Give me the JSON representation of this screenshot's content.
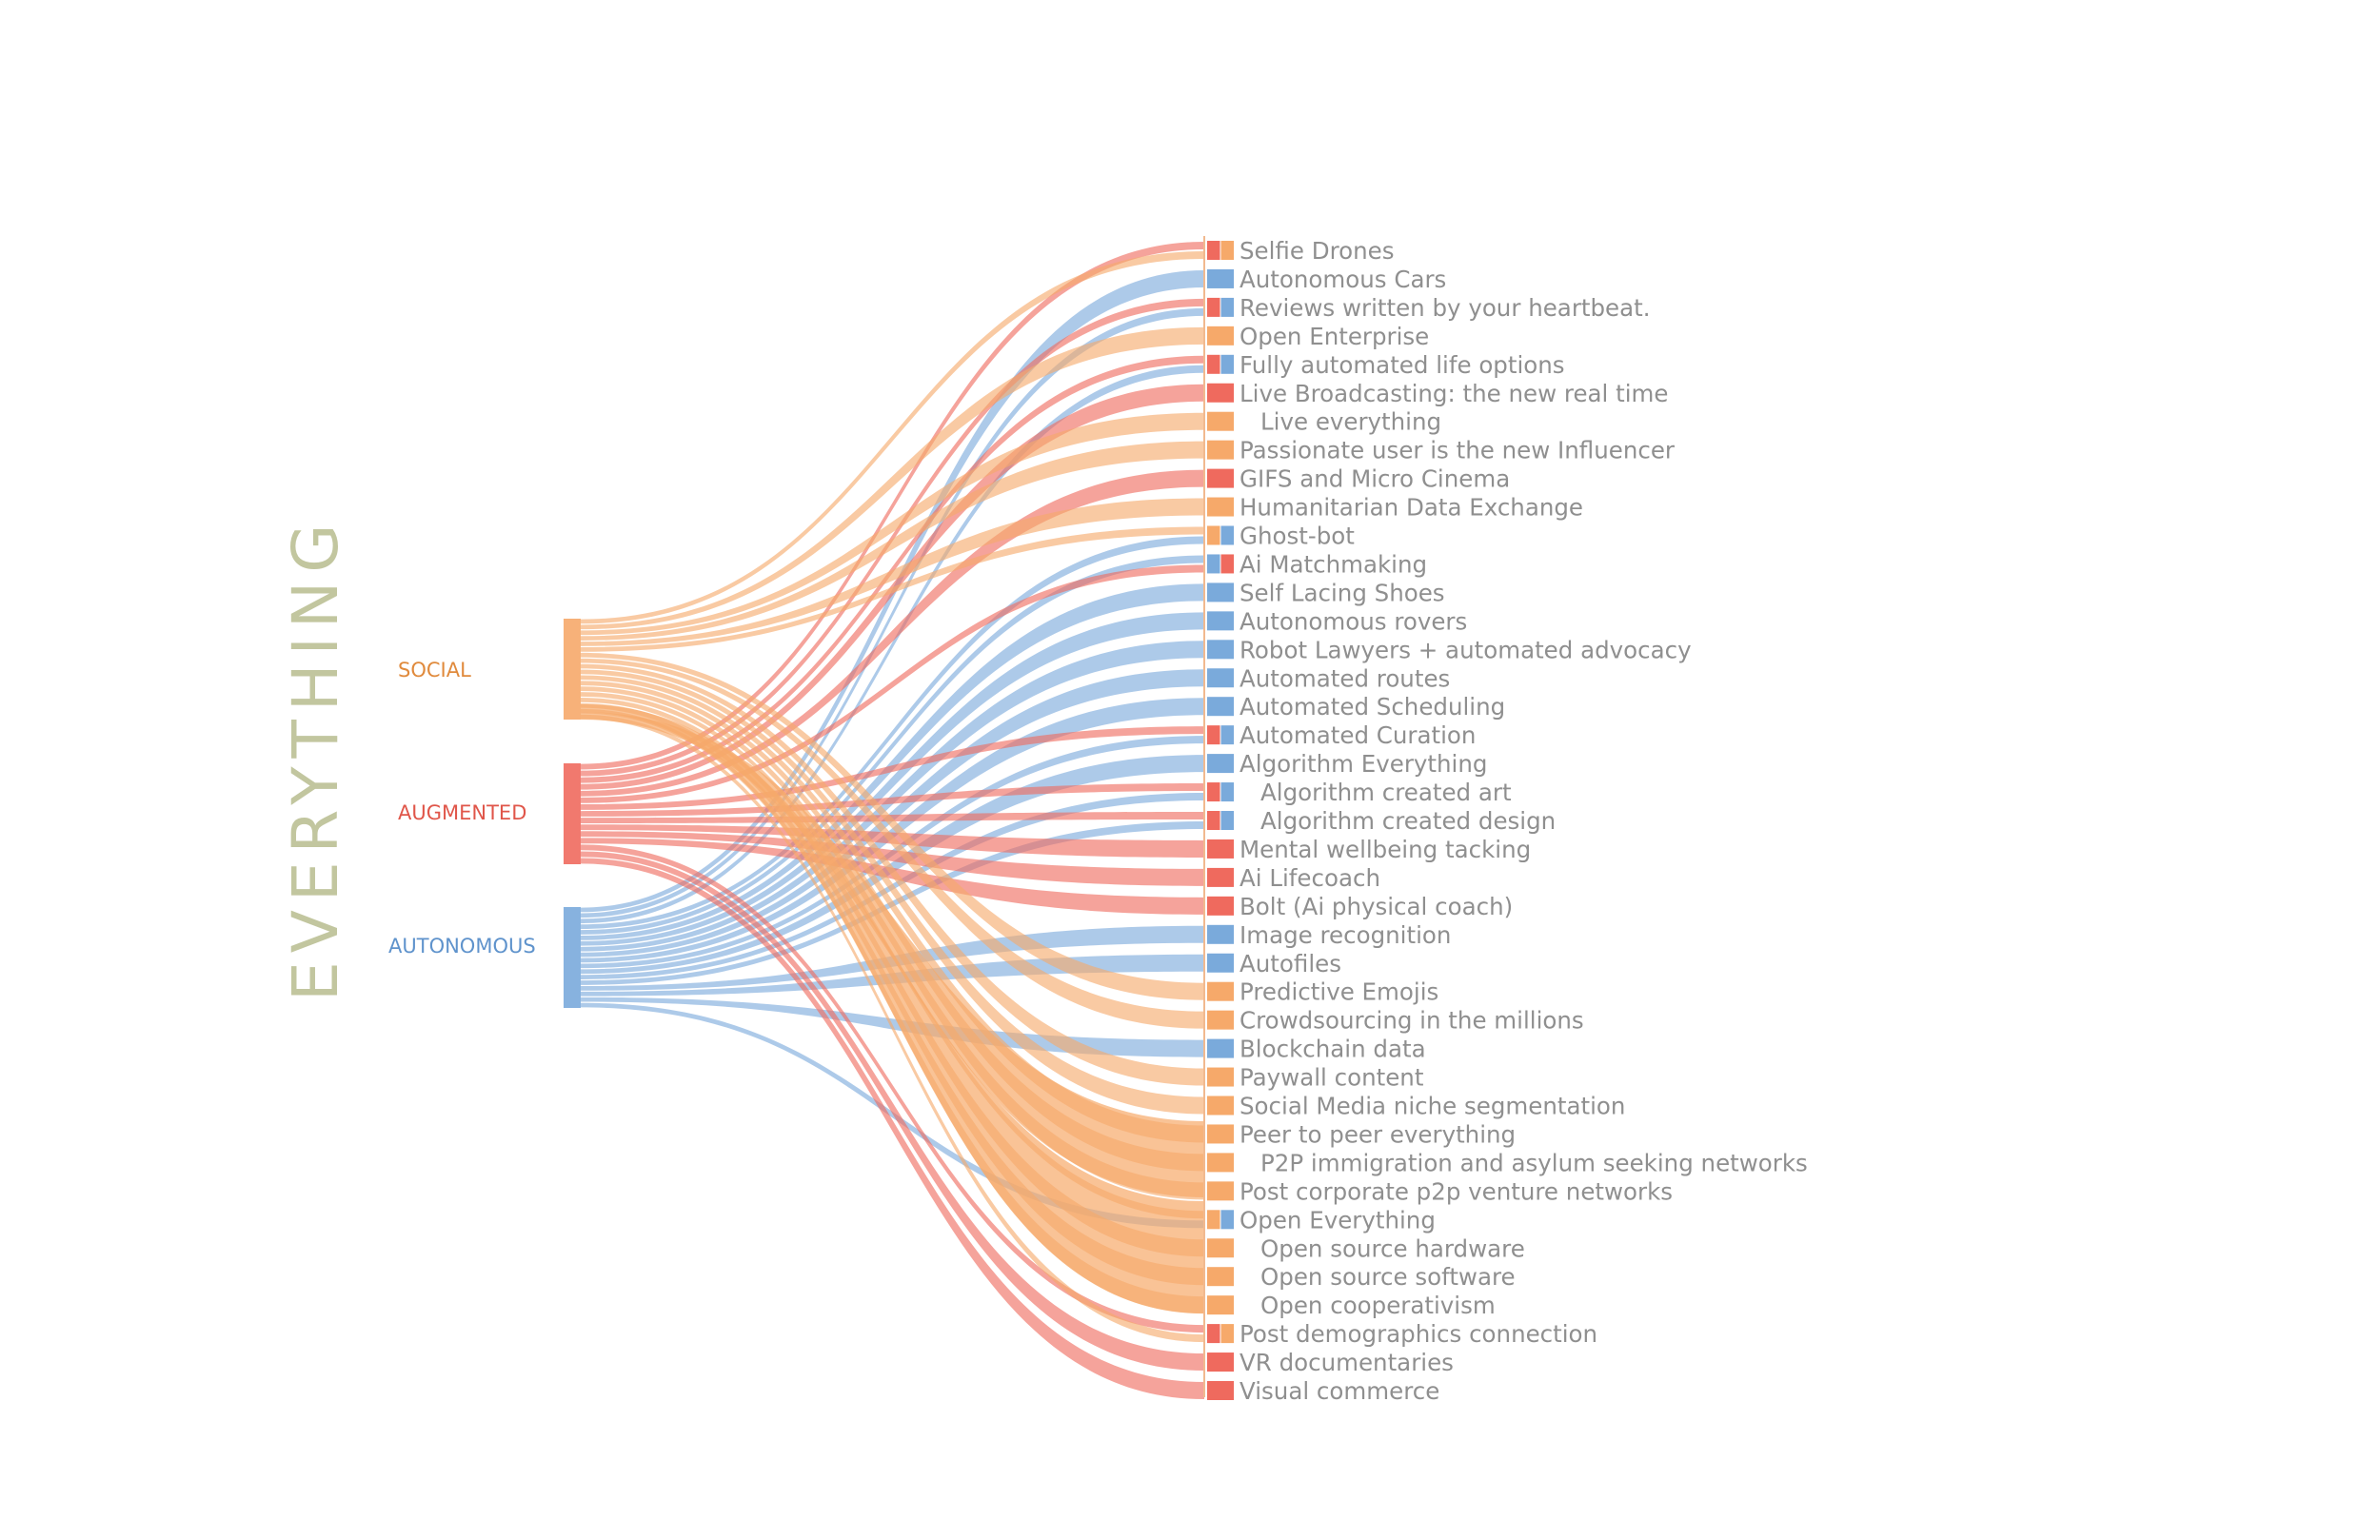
{
  "title": "EVERYTHING",
  "colors": {
    "title": "#c2c69f",
    "background": "#ffffff",
    "item_text": "#8f8f8f"
  },
  "categories": [
    {
      "id": "social",
      "label": "SOCIAL",
      "color": "#f6a96a",
      "text_color": "#e08a3c"
    },
    {
      "id": "augmented",
      "label": "AUGMENTED",
      "color": "#ef6a5e",
      "text_color": "#e0564a"
    },
    {
      "id": "autonomous",
      "label": "AUTONOMOUS",
      "color": "#7aaadb",
      "text_color": "#5f93cc"
    }
  ],
  "items": [
    {
      "label": "Selfie Drones",
      "indent": false,
      "categories": [
        "augmented",
        "social"
      ]
    },
    {
      "label": "Autonomous Cars",
      "indent": false,
      "categories": [
        "autonomous"
      ]
    },
    {
      "label": "Reviews written by your heartbeat.",
      "indent": false,
      "categories": [
        "augmented",
        "autonomous"
      ]
    },
    {
      "label": "Open Enterprise",
      "indent": false,
      "categories": [
        "social"
      ]
    },
    {
      "label": "Fully automated life options",
      "indent": false,
      "categories": [
        "augmented",
        "autonomous"
      ]
    },
    {
      "label": "Live Broadcasting: the new real time",
      "indent": false,
      "categories": [
        "augmented"
      ]
    },
    {
      "label": "Live everything",
      "indent": true,
      "categories": [
        "social"
      ]
    },
    {
      "label": "Passionate user is the new Influencer",
      "indent": false,
      "categories": [
        "social"
      ]
    },
    {
      "label": "GIFS and Micro Cinema",
      "indent": false,
      "categories": [
        "augmented"
      ]
    },
    {
      "label": "Humanitarian Data Exchange",
      "indent": false,
      "categories": [
        "social"
      ]
    },
    {
      "label": "Ghost-bot",
      "indent": false,
      "categories": [
        "social",
        "autonomous"
      ]
    },
    {
      "label": "Ai Matchmaking",
      "indent": false,
      "categories": [
        "autonomous",
        "augmented"
      ]
    },
    {
      "label": "Self Lacing Shoes",
      "indent": false,
      "categories": [
        "autonomous"
      ]
    },
    {
      "label": "Autonomous rovers",
      "indent": false,
      "categories": [
        "autonomous"
      ]
    },
    {
      "label": "Robot Lawyers + automated advocacy",
      "indent": false,
      "categories": [
        "autonomous"
      ]
    },
    {
      "label": "Automated routes",
      "indent": false,
      "categories": [
        "autonomous"
      ]
    },
    {
      "label": "Automated Scheduling",
      "indent": false,
      "categories": [
        "autonomous"
      ]
    },
    {
      "label": "Automated Curation",
      "indent": false,
      "categories": [
        "augmented",
        "autonomous"
      ]
    },
    {
      "label": "Algorithm Everything",
      "indent": false,
      "categories": [
        "autonomous"
      ]
    },
    {
      "label": "Algorithm created art",
      "indent": true,
      "categories": [
        "augmented",
        "autonomous"
      ]
    },
    {
      "label": "Algorithm created design",
      "indent": true,
      "categories": [
        "augmented",
        "autonomous"
      ]
    },
    {
      "label": "Mental wellbeing tacking",
      "indent": false,
      "categories": [
        "augmented"
      ]
    },
    {
      "label": "Ai Lifecoach",
      "indent": false,
      "categories": [
        "augmented"
      ]
    },
    {
      "label": "Bolt (Ai physical coach)",
      "indent": false,
      "categories": [
        "augmented"
      ]
    },
    {
      "label": "Image recognition",
      "indent": false,
      "categories": [
        "autonomous"
      ]
    },
    {
      "label": "Autofiles",
      "indent": false,
      "categories": [
        "autonomous"
      ]
    },
    {
      "label": "Predictive Emojis",
      "indent": false,
      "categories": [
        "social"
      ]
    },
    {
      "label": "Crowdsourcing in the millions",
      "indent": false,
      "categories": [
        "social"
      ]
    },
    {
      "label": "Blockchain data",
      "indent": false,
      "categories": [
        "autonomous"
      ]
    },
    {
      "label": "Paywall content",
      "indent": false,
      "categories": [
        "social"
      ]
    },
    {
      "label": "Social Media niche segmentation",
      "indent": false,
      "categories": [
        "social"
      ]
    },
    {
      "label": "Peer to peer everything",
      "indent": false,
      "categories": [
        "social"
      ]
    },
    {
      "label": "P2P immigration and asylum seeking networks",
      "indent": true,
      "categories": [
        "social"
      ]
    },
    {
      "label": "Post corporate p2p venture networks",
      "indent": false,
      "categories": [
        "social"
      ]
    },
    {
      "label": "Open Everything",
      "indent": false,
      "categories": [
        "social",
        "autonomous"
      ]
    },
    {
      "label": "Open source hardware",
      "indent": true,
      "categories": [
        "social"
      ]
    },
    {
      "label": "Open source software",
      "indent": true,
      "categories": [
        "social"
      ]
    },
    {
      "label": "Open cooperativism",
      "indent": true,
      "categories": [
        "social"
      ]
    },
    {
      "label": "Post demographics connection",
      "indent": false,
      "categories": [
        "augmented",
        "social"
      ]
    },
    {
      "label": "VR documentaries",
      "indent": false,
      "categories": [
        "augmented"
      ]
    },
    {
      "label": "Visual commerce",
      "indent": false,
      "categories": [
        "augmented"
      ]
    }
  ]
}
